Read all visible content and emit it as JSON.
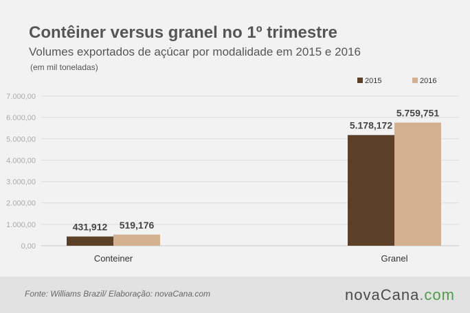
{
  "header": {
    "title": "Contêiner versus granel no 1º trimestre",
    "subtitle": "Volumes exportados de açúcar por modalidade em 2015 e 2016",
    "note": "(em mil  toneladas)"
  },
  "footer": {
    "source": "Fonte: Williams Brazil/ Elaboração: novaCana.com",
    "logo": {
      "part1": "nova",
      "part2": "Cana",
      "part3": ".com"
    }
  },
  "colors": {
    "series_2015": "#5b3f26",
    "series_2016": "#d3b08f",
    "gridline": "#dcdcdc",
    "axis_text": "#aaaaaa"
  },
  "chart_data": {
    "type": "bar",
    "categories": [
      "Conteiner",
      "Granel"
    ],
    "series": [
      {
        "name": "2015",
        "values": [
          431.912,
          5178.172
        ],
        "labels": [
          "431,912",
          "5.178,172"
        ]
      },
      {
        "name": "2016",
        "values": [
          519.176,
          5759.751
        ],
        "labels": [
          "519,176",
          "5.759,751"
        ]
      }
    ],
    "ylim": [
      0,
      7000
    ],
    "yticks": [
      0,
      1000,
      2000,
      3000,
      4000,
      5000,
      6000,
      7000
    ],
    "ytick_labels": [
      "0,00",
      "1.000,00",
      "2.000,00",
      "3.000,00",
      "4.000,00",
      "5.000,00",
      "6.000,00",
      "7.000,00"
    ],
    "legend_position": "top-right",
    "grid": true
  }
}
